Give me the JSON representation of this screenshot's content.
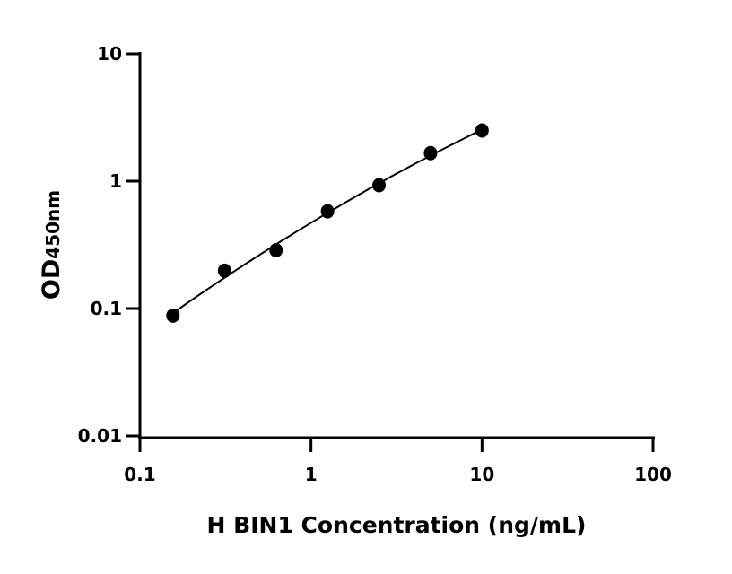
{
  "chart_data": {
    "type": "scatter",
    "title": "",
    "xlabel": "H BIN1 Concentration (ng/mL)",
    "ylabel": "OD",
    "ylabel_subscript": "450nm",
    "x_scale": "log",
    "y_scale": "log",
    "xlim": [
      0.1,
      100
    ],
    "ylim": [
      0.01,
      10
    ],
    "x_ticks": [
      "0.1",
      "1",
      "10",
      "100"
    ],
    "y_ticks": [
      "0.01",
      "0.1",
      "1",
      "10"
    ],
    "grid": false,
    "legend": "none",
    "fit_curve": true,
    "color": "#000000",
    "series": [
      {
        "x": [
          0.156,
          0.3125,
          0.625,
          1.25,
          2.5,
          5,
          10
        ],
        "y": [
          0.088,
          0.198,
          0.287,
          0.58,
          0.93,
          1.66,
          2.5
        ]
      }
    ]
  }
}
